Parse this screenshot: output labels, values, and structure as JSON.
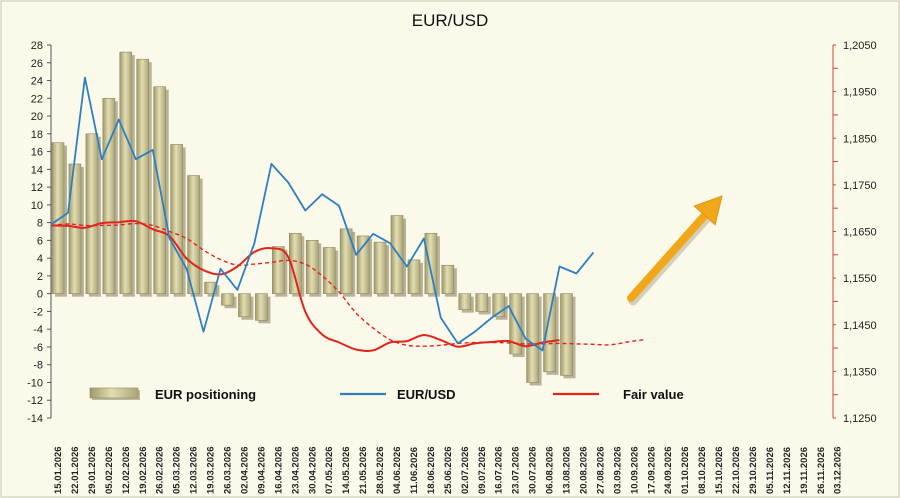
{
  "chart_data": {
    "type": "bar+line",
    "title": "EUR/USD",
    "x_dates": [
      "15.01.2026",
      "22.01.2026",
      "29.01.2026",
      "05.02.2026",
      "12.02.2026",
      "19.02.2026",
      "26.02.2026",
      "05.03.2026",
      "12.03.2026",
      "19.03.2026",
      "26.03.2026",
      "02.04.2026",
      "09.04.2026",
      "16.04.2026",
      "23.04.2026",
      "30.04.2026",
      "07.05.2026",
      "14.05.2026",
      "21.05.2026",
      "28.05.2026",
      "04.06.2026",
      "11.06.2026",
      "18.06.2026",
      "25.06.2026",
      "02.07.2026",
      "09.07.2026",
      "16.07.2026",
      "23.07.2026",
      "30.07.2026",
      "06.08.2026",
      "13.08.2026",
      "20.08.2026",
      "27.08.2026",
      "03.09.2026",
      "10.09.2026",
      "17.09.2026",
      "24.09.2026",
      "01.10.2026",
      "08.10.2026",
      "15.10.2026",
      "22.10.2026",
      "29.10.2026",
      "05.11.2026",
      "12.11.2026",
      "19.11.2026",
      "26.11.2026",
      "03.12.2026"
    ],
    "left_axis": {
      "min": -14,
      "max": 28,
      "step": 2,
      "ticks": [
        "28",
        "26",
        "24",
        "22",
        "20",
        "18",
        "16",
        "14",
        "12",
        "10",
        "8",
        "6",
        "4",
        "2",
        "0",
        "-2",
        "-4",
        "-6",
        "-8",
        "-10",
        "-12",
        "-14"
      ]
    },
    "right_axis": {
      "min": 1.125,
      "max": 1.205,
      "step": 0.01,
      "ticks": [
        "1,2050",
        "1,1950",
        "1,1850",
        "1,1750",
        "1,1650",
        "1,1550",
        "1,1450",
        "1,1350",
        "1,1250"
      ]
    },
    "grid": false,
    "series": [
      {
        "name": "EUR positioning",
        "axis": "left",
        "style": "bar",
        "color": "#c6c093",
        "values": [
          17,
          14.6,
          18,
          22,
          27.2,
          26.4,
          23.3,
          16.8,
          13.3,
          1.3,
          -1.3,
          -2.6,
          -3,
          5.3,
          6.8,
          6,
          5.2,
          7.3,
          6.5,
          5.8,
          8.8,
          3.8,
          6.8,
          3.2,
          -1.8,
          -2,
          -2.6,
          -6.8,
          -10,
          -8.8,
          -9.2
        ]
      },
      {
        "name": "EUR/USD",
        "axis": "right",
        "style": "line",
        "color": "#2e7fc1",
        "values": [
          1.1665,
          1.169,
          1.198,
          1.1805,
          1.189,
          1.1805,
          1.1825,
          1.1635,
          1.157,
          1.1435,
          1.157,
          1.1525,
          1.1625,
          1.1795,
          1.1755,
          1.1695,
          1.173,
          1.1705,
          1.16,
          1.1645,
          1.1625,
          1.1575,
          1.1635,
          1.1465,
          1.141,
          1.1435,
          1.1465,
          1.149,
          1.142,
          1.1395,
          1.1575,
          1.156,
          1.1605
        ]
      },
      {
        "name": "Fair value",
        "axis": "right",
        "style": "line",
        "color": "#e0261c",
        "values": [
          1.1663,
          1.1662,
          1.1658,
          1.1668,
          1.167,
          1.1672,
          1.1655,
          1.164,
          1.1592,
          1.1567,
          1.1558,
          1.1575,
          1.1606,
          1.1614,
          1.1595,
          1.1478,
          1.1429,
          1.1412,
          1.1397,
          1.1395,
          1.1412,
          1.1415,
          1.1428,
          1.1417,
          1.1403,
          1.141,
          1.1413,
          1.1415,
          1.1404,
          1.1412,
          1.1417
        ]
      },
      {
        "name": "Fair value (forecast)",
        "axis": "right",
        "style": "dashed",
        "color": "#e0261c",
        "values": [
          1.1663,
          1.1666,
          1.1663,
          1.1663,
          1.1664,
          1.1667,
          1.1663,
          1.165,
          1.1635,
          1.161,
          1.159,
          1.1578,
          1.158,
          1.1584,
          1.1588,
          1.158,
          1.1555,
          1.152,
          1.1475,
          1.1443,
          1.1418,
          1.1406,
          1.1404,
          1.1406,
          1.141,
          1.1412,
          1.1412,
          1.1411,
          1.1409,
          1.1409,
          1.141,
          1.1409,
          1.1408,
          1.1407,
          1.1413,
          1.1418
        ]
      }
    ],
    "legend": [
      {
        "label": "EUR positioning",
        "kind": "bar"
      },
      {
        "label": "EUR/USD",
        "kind": "line"
      },
      {
        "label": "Fair value",
        "kind": "line"
      }
    ],
    "legend_position": "bottom-left",
    "annotation": {
      "type": "arrow",
      "direction": "up-right",
      "color": "#f0a81a"
    }
  }
}
